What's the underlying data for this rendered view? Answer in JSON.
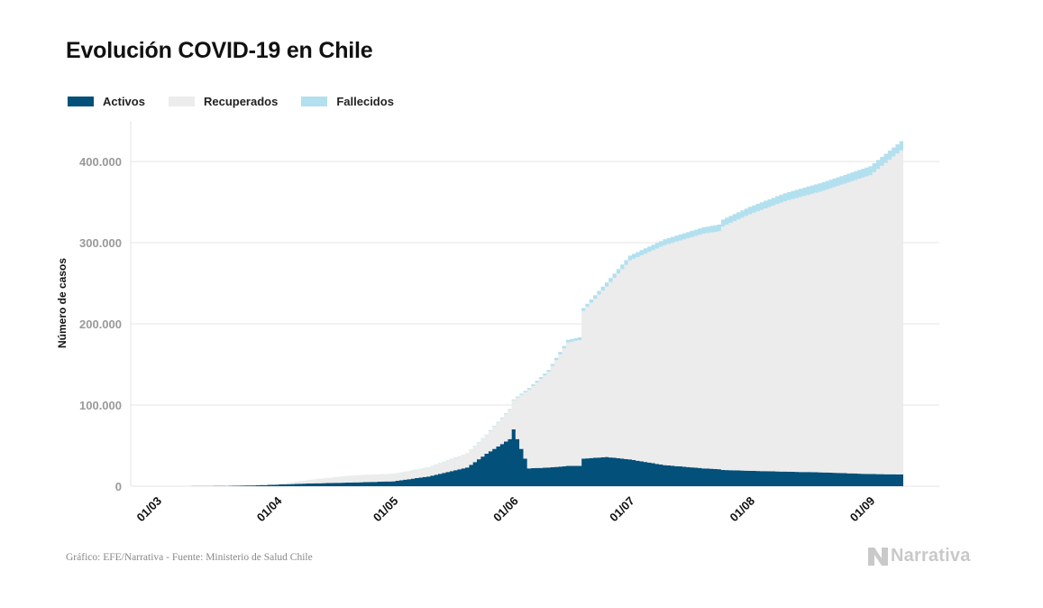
{
  "title": "Evolución COVID-19 en Chile",
  "legend": [
    {
      "label": "Activos",
      "color": "#03507a"
    },
    {
      "label": "Recuperados",
      "color": "#ececec"
    },
    {
      "label": "Fallecidos",
      "color": "#b3e0ee"
    }
  ],
  "source": "Gráfico: EFE/Narrativa - Fuente: Ministerio de Salud Chile",
  "brand": "Narrativa",
  "chart_data": {
    "type": "area",
    "stacked": true,
    "title": "Evolución COVID-19 en Chile",
    "ylabel": "Número de casos",
    "ylim": [
      0,
      450000
    ],
    "y_ticks": [
      0,
      100000,
      200000,
      300000,
      400000
    ],
    "y_tick_labels": [
      "0",
      "100.000",
      "200.000",
      "300.000",
      "400.000"
    ],
    "x_tick_labels": [
      "01/03",
      "01/04",
      "01/05",
      "01/06",
      "01/07",
      "01/08",
      "01/09"
    ],
    "x_ticks": [
      "2020-03-01",
      "2020-04-01",
      "2020-05-01",
      "2020-06-01",
      "2020-07-01",
      "2020-08-01",
      "2020-09-01"
    ],
    "grid": true,
    "legend_position": "top-left",
    "x": [
      "2020-03-03",
      "2020-03-15",
      "2020-03-25",
      "2020-04-01",
      "2020-04-10",
      "2020-04-20",
      "2020-05-01",
      "2020-05-10",
      "2020-05-20",
      "2020-05-25",
      "2020-05-31",
      "2020-06-01",
      "2020-06-05",
      "2020-06-10",
      "2020-06-15",
      "2020-06-18",
      "2020-06-19",
      "2020-06-25",
      "2020-07-01",
      "2020-07-10",
      "2020-07-20",
      "2020-07-24",
      "2020-07-25",
      "2020-08-01",
      "2020-08-10",
      "2020-08-20",
      "2020-09-01",
      "2020-09-10"
    ],
    "series": [
      {
        "name": "Activos",
        "color": "#03507a",
        "values": [
          0,
          100,
          800,
          2000,
          3500,
          4500,
          6000,
          12000,
          23000,
          40000,
          58000,
          70000,
          22000,
          23000,
          25000,
          25000,
          34000,
          36000,
          33000,
          26000,
          22000,
          21000,
          20000,
          19000,
          18000,
          17000,
          15000,
          14500
        ]
      },
      {
        "name": "Recuperados",
        "color": "#ececec",
        "values": [
          0,
          0,
          50,
          400,
          4500,
          8500,
          9000,
          11000,
          17000,
          23000,
          36000,
          36000,
          97000,
          118000,
          152000,
          155000,
          182000,
          210000,
          245000,
          271000,
          289000,
          293000,
          300000,
          316000,
          333000,
          347000,
          368000,
          403000
        ]
      },
      {
        "name": "Fallecidos",
        "color": "#b3e0ee",
        "values": [
          0,
          0,
          10,
          12,
          80,
          140,
          230,
          300,
          420,
          700,
          1000,
          1050,
          2000,
          2200,
          3200,
          3400,
          3500,
          5000,
          6000,
          7200,
          8000,
          8300,
          8500,
          9200,
          9900,
          10500,
          11000,
          11400
        ]
      }
    ]
  }
}
